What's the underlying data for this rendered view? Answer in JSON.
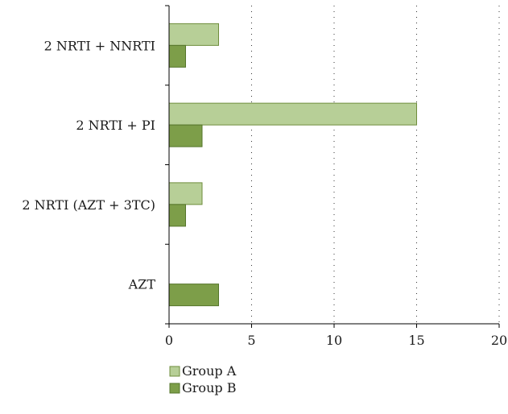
{
  "chart_data": {
    "type": "bar",
    "orientation": "horizontal",
    "categories": [
      "2 NRTI + NNRTI",
      "2 NRTI + PI",
      "2 NRTI (AZT + 3TC)",
      "AZT"
    ],
    "series": [
      {
        "name": "Group A",
        "values": [
          3,
          15,
          2,
          0
        ]
      },
      {
        "name": "Group B",
        "values": [
          1,
          2,
          1,
          3
        ]
      }
    ],
    "xlim": [
      0,
      20
    ],
    "xticks": [
      "0",
      "5",
      "10",
      "15",
      "20"
    ],
    "grid": "vertical-dotted",
    "legend_position": "bottom-center",
    "colors": {
      "Group A": "#b7cf97",
      "Group B": "#7d9e49",
      "Group A border": "#6f8d3c",
      "Group B border": "#55762b",
      "axis": "#000000",
      "grid": "#333333"
    }
  }
}
